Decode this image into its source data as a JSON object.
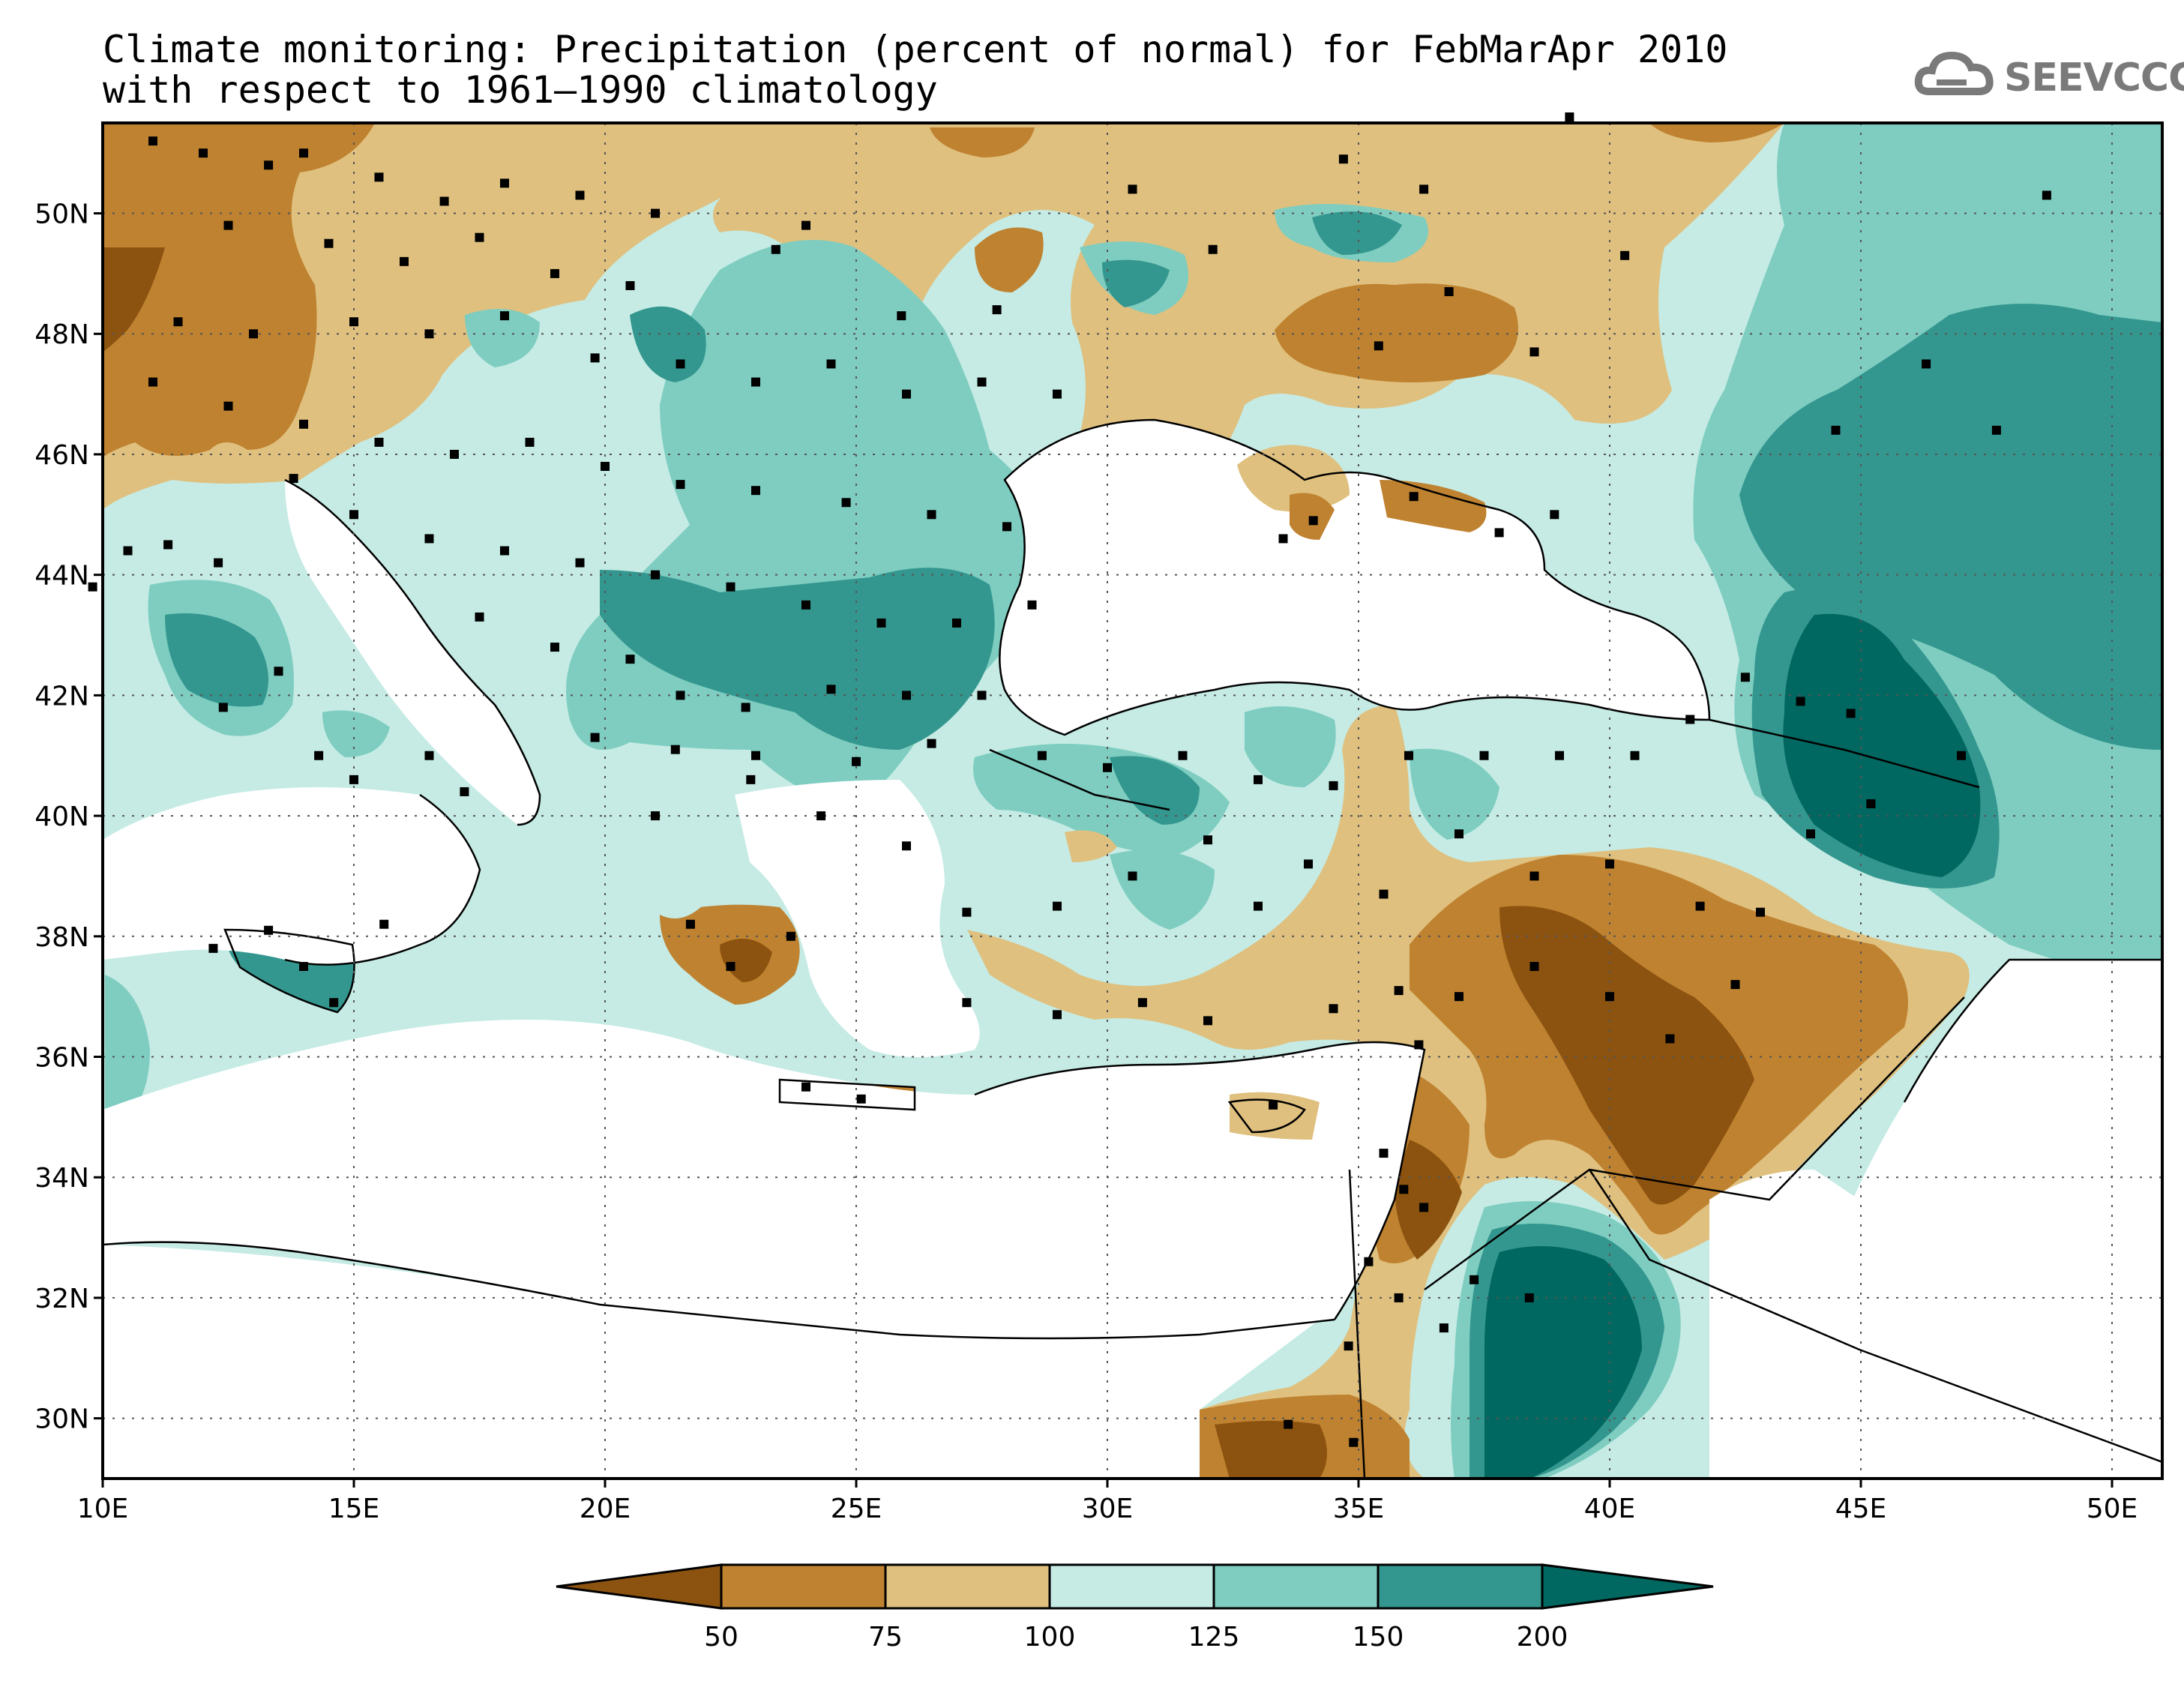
{
  "title": {
    "line1": "Climate monitoring: Precipitation (percent of normal) for FebMarApr 2010",
    "line2": "with respect to 1961–1990 climatology"
  },
  "logo": {
    "text": "SEEVCCC",
    "icon": "cloud-icon"
  },
  "map": {
    "lon_range": [
      10,
      51
    ],
    "lat_range": [
      29,
      51.5
    ],
    "lat_labels": [
      "30N",
      "32N",
      "34N",
      "36N",
      "38N",
      "40N",
      "42N",
      "44N",
      "46N",
      "48N",
      "50N"
    ],
    "lon_labels": [
      "10E",
      "15E",
      "20E",
      "25E",
      "30E",
      "35E",
      "40E",
      "45E",
      "50E"
    ]
  },
  "legend": {
    "thresholds": [
      "50",
      "75",
      "100",
      "125",
      "150",
      "200"
    ],
    "colors": [
      "#8c5310",
      "#bf8230",
      "#dfc07e",
      "#c5ebe4",
      "#7ecdc0",
      "#34978f",
      "#006860"
    ]
  }
}
